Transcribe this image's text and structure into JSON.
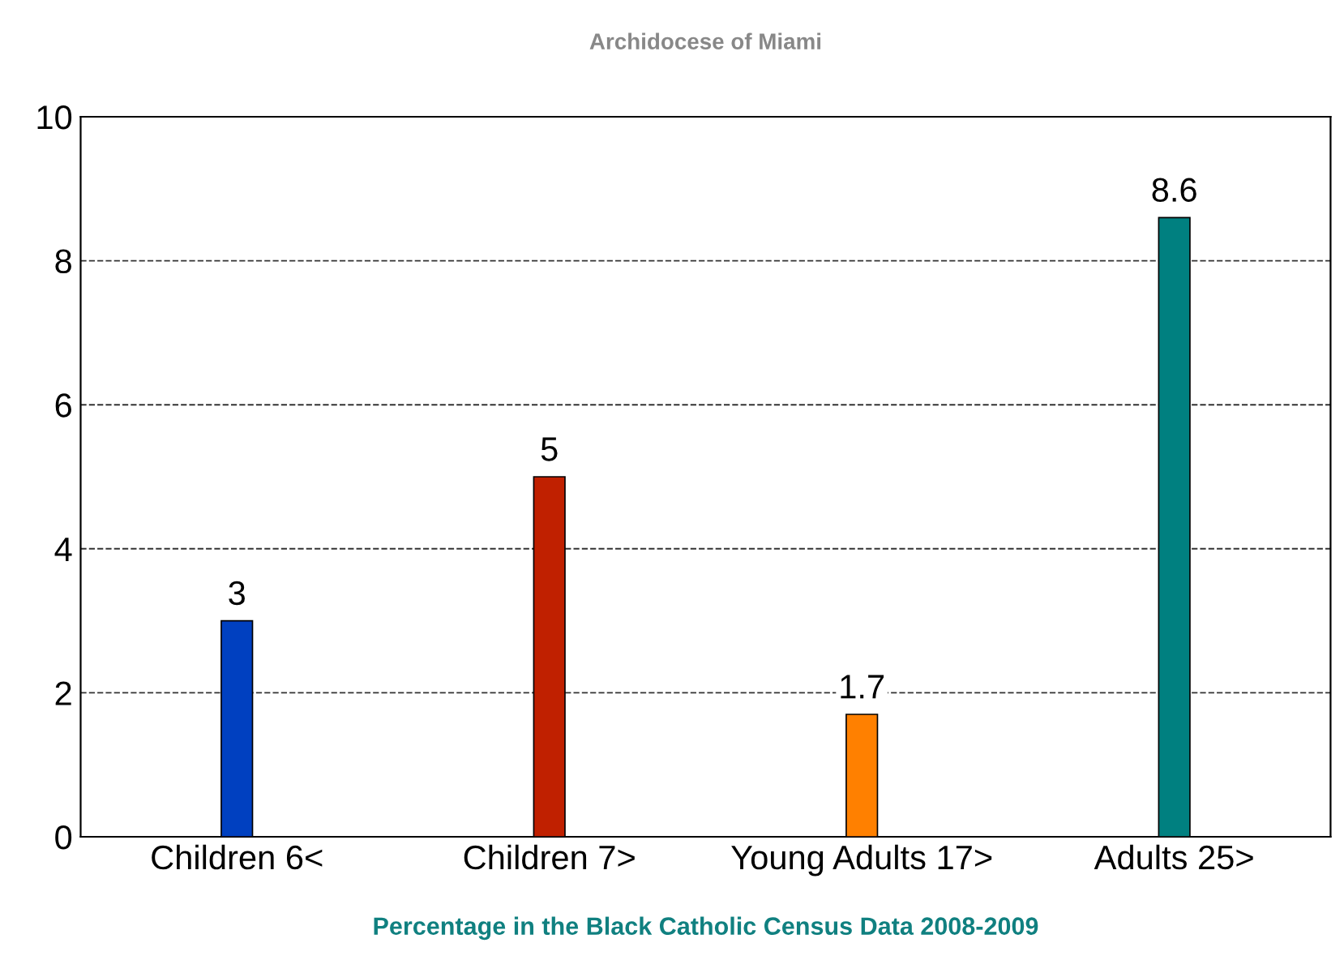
{
  "chart_data": {
    "type": "bar",
    "title": "Archidocese of Miami",
    "xlabel": "Percentage in the Black Catholic Census Data 2008-2009",
    "categories": [
      "Children 6<",
      "Children 7>",
      "Young Adults 17>",
      "Adults 25>"
    ],
    "values": [
      3,
      5,
      1.7,
      8.6
    ],
    "colors": [
      "#0040c0",
      "#c02000",
      "#ff8000",
      "#008080"
    ],
    "ylim": [
      0,
      10
    ],
    "yticks": [
      0,
      2,
      4,
      6,
      8,
      10
    ],
    "grid": "y",
    "line_style": "dashed",
    "data_labels": true
  }
}
